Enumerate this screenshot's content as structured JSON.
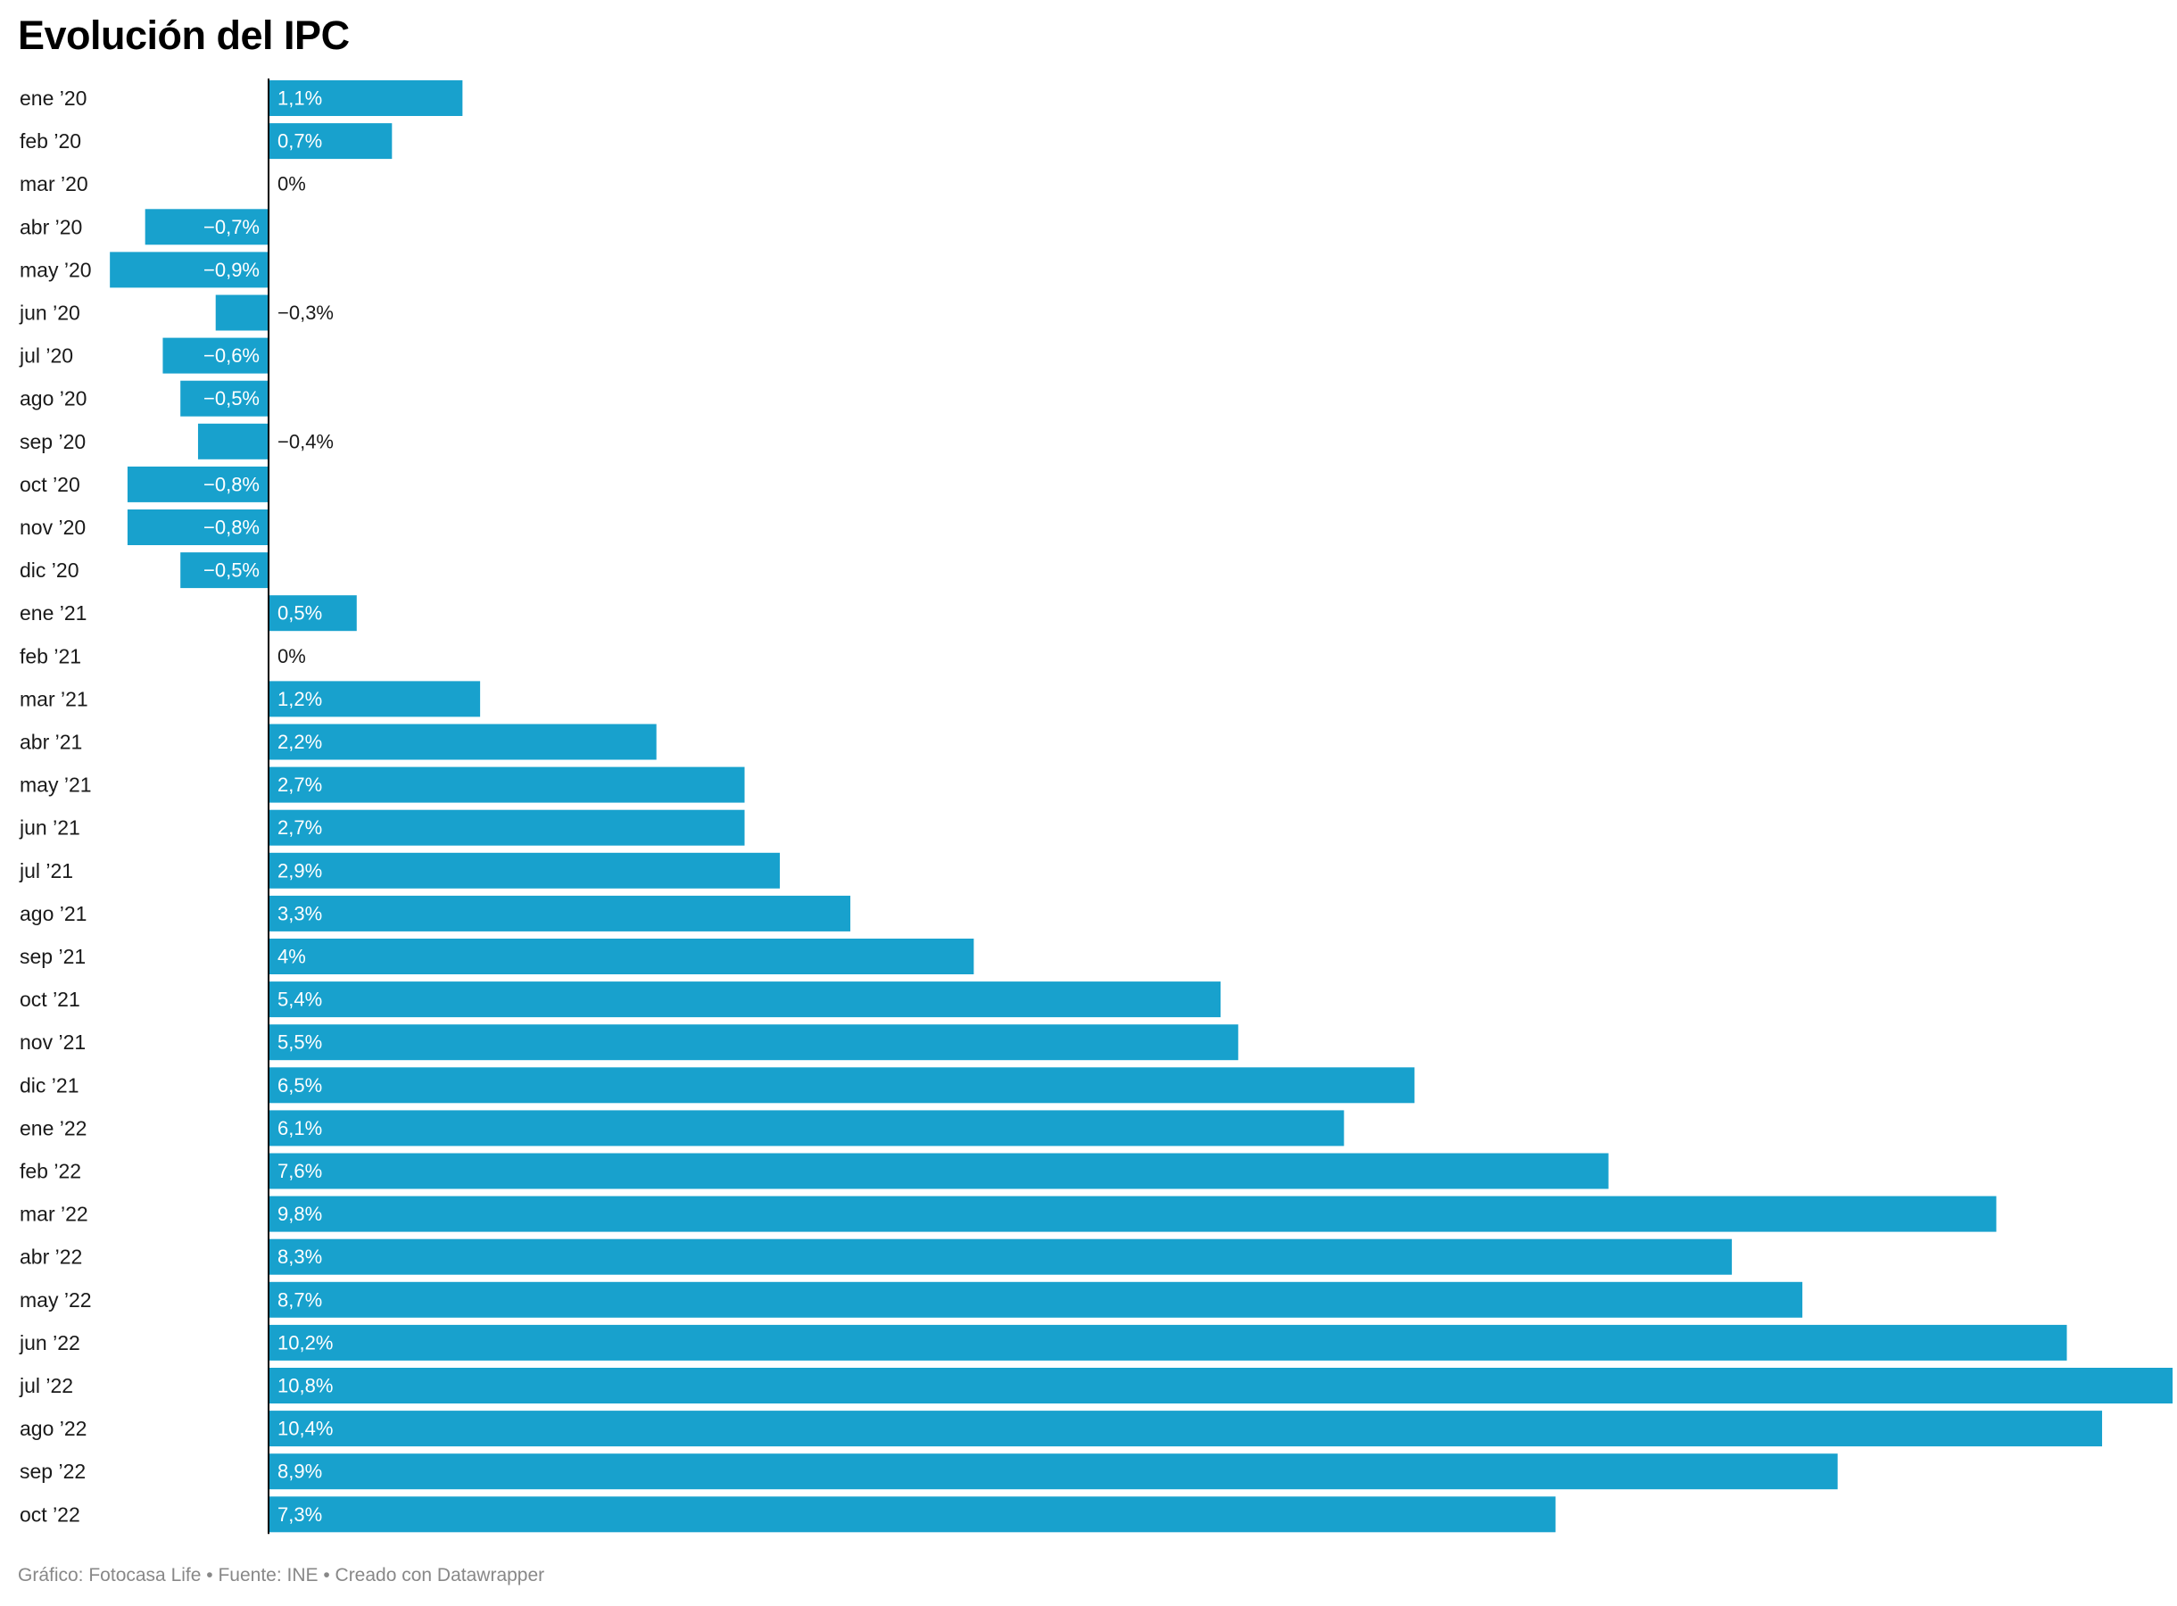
{
  "colors": {
    "bar": "#18a1cd",
    "label_inside": "#ffffff",
    "label_outside": "#1a1a1a",
    "category_label": "#1a1a1a",
    "axis": "#000000",
    "footer": "#888888"
  },
  "footer": "Gráfico: Fotocasa Life • Fuente: INE • Creado con Datawrapper",
  "chart_data": {
    "type": "bar",
    "orientation": "horizontal",
    "title": "Evolución del IPC",
    "xlabel": "",
    "ylabel": "",
    "grid": false,
    "legend": "none",
    "unit": "%",
    "xlim": [
      -0.9,
      10.8
    ],
    "categories": [
      "ene ’20",
      "feb ’20",
      "mar ’20",
      "abr ’20",
      "may ’20",
      "jun ’20",
      "jul ’20",
      "ago ’20",
      "sep ’20",
      "oct ’20",
      "nov ’20",
      "dic ’20",
      "ene ’21",
      "feb ’21",
      "mar ’21",
      "abr ’21",
      "may ’21",
      "jun ’21",
      "jul ’21",
      "ago ’21",
      "sep ’21",
      "oct ’21",
      "nov ’21",
      "dic ’21",
      "ene ’22",
      "feb ’22",
      "mar ’22",
      "abr ’22",
      "may ’22",
      "jun ’22",
      "jul ’22",
      "ago ’22",
      "sep ’22",
      "oct ’22"
    ],
    "values": [
      1.1,
      0.7,
      0,
      -0.7,
      -0.9,
      -0.3,
      -0.6,
      -0.5,
      -0.4,
      -0.8,
      -0.8,
      -0.5,
      0.5,
      0,
      1.2,
      2.2,
      2.7,
      2.7,
      2.9,
      3.3,
      4,
      5.4,
      5.5,
      6.5,
      6.1,
      7.6,
      9.8,
      8.3,
      8.7,
      10.2,
      10.8,
      10.4,
      8.9,
      7.3
    ],
    "value_labels": [
      "1,1%",
      "0,7%",
      "0%",
      "−0,7%",
      "−0,9%",
      "−0,3%",
      "−0,6%",
      "−0,5%",
      "−0,4%",
      "−0,8%",
      "−0,8%",
      "−0,5%",
      "0,5%",
      "0%",
      "1,2%",
      "2,2%",
      "2,7%",
      "2,7%",
      "2,9%",
      "3,3%",
      "4%",
      "5,4%",
      "5,5%",
      "6,5%",
      "6,1%",
      "7,6%",
      "9,8%",
      "8,3%",
      "8,7%",
      "10,2%",
      "10,8%",
      "10,4%",
      "8,9%",
      "7,3%"
    ]
  }
}
